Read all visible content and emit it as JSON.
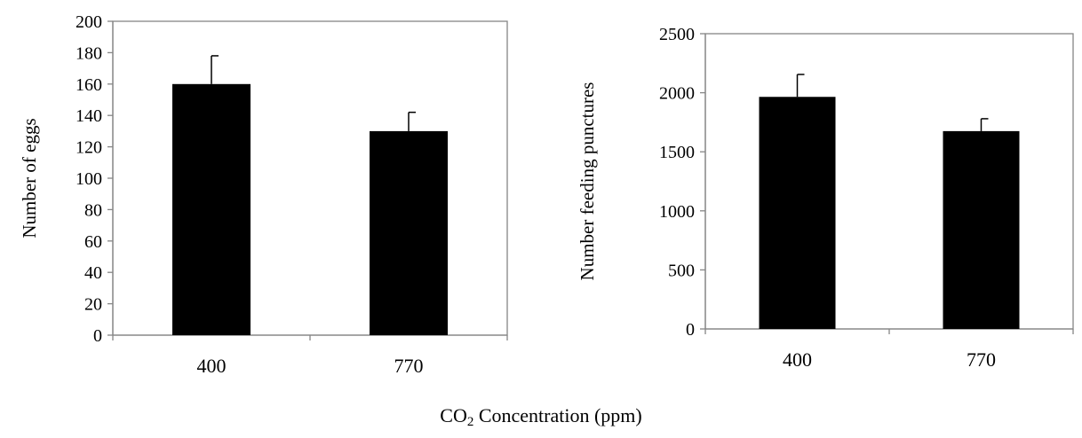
{
  "shared_xlabel": {
    "prefix": "CO",
    "subscript": "2",
    "suffix": " Concentration (ppm)"
  },
  "chart_data": [
    {
      "type": "bar",
      "title": "",
      "xlabel": "",
      "ylabel": "Number of eggs",
      "categories": [
        "400",
        "770"
      ],
      "series": [
        {
          "values": [
            160,
            130
          ],
          "error": [
            18,
            12
          ],
          "color": "#000000"
        }
      ],
      "ylim": [
        0,
        200
      ],
      "yticks": [
        0,
        20,
        40,
        60,
        80,
        100,
        120,
        140,
        160,
        180,
        200
      ],
      "grid": false,
      "legend": "none"
    },
    {
      "type": "bar",
      "title": "",
      "xlabel": "",
      "ylabel": "Number feeding punctures",
      "categories": [
        "400",
        "770"
      ],
      "series": [
        {
          "values": [
            1965,
            1675
          ],
          "error": [
            190,
            105
          ],
          "color": "#000000"
        }
      ],
      "ylim": [
        0,
        2500
      ],
      "yticks": [
        0,
        500,
        1000,
        1500,
        2000,
        2500
      ],
      "grid": false,
      "legend": "none"
    }
  ]
}
